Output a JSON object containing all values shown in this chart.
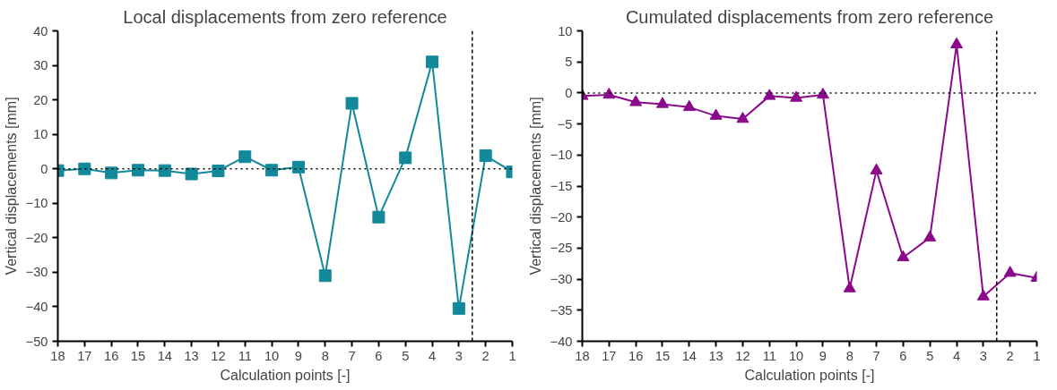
{
  "chart_data": [
    {
      "type": "line",
      "title": "Local displacements from zero reference",
      "xlabel": "Calculation points [-]",
      "ylabel": "Vertical displacements [mm]",
      "x": [
        18,
        17,
        16,
        15,
        14,
        13,
        12,
        11,
        10,
        9,
        8,
        7,
        6,
        5,
        4,
        3,
        2,
        1
      ],
      "series": [
        {
          "color": "#12889b",
          "values": [
            -0.5,
            0,
            -1.2,
            -0.4,
            -0.5,
            -1.5,
            -0.6,
            3.5,
            -0.4,
            0.5,
            -31,
            19,
            -14,
            3.2,
            31,
            -40.5,
            3.8,
            -0.9
          ]
        }
      ],
      "xlim": [
        18,
        1
      ],
      "xticks": [
        18,
        17,
        16,
        15,
        14,
        13,
        12,
        11,
        10,
        9,
        8,
        7,
        6,
        5,
        4,
        3,
        2,
        1
      ],
      "ylim": [
        -50,
        40
      ],
      "yticks": [
        -50,
        -40,
        -30,
        -20,
        -10,
        0,
        10,
        20,
        30,
        40
      ],
      "ref_lines": [
        {
          "axis": "y",
          "value": 0,
          "line_style": "dotted"
        },
        {
          "axis": "x",
          "value": 2.5,
          "line_style": "dashed"
        }
      ],
      "marker": "square",
      "line_style": "solid",
      "grid": false
    },
    {
      "type": "line",
      "title": "Cumulated displacements from zero reference",
      "xlabel": "Calculation points [-]",
      "ylabel": "Vertical displacements [mm]",
      "x": [
        18,
        17,
        16,
        15,
        14,
        13,
        12,
        11,
        10,
        9,
        8,
        7,
        6,
        5,
        4,
        3,
        2,
        1
      ],
      "series": [
        {
          "color": "#8b0a8b",
          "values": [
            -0.5,
            -0.3,
            -1.5,
            -1.8,
            -2.3,
            -3.7,
            -4.2,
            -0.5,
            -0.8,
            -0.3,
            -31.5,
            -12.5,
            -26.5,
            -23.3,
            7.8,
            -32.8,
            -29,
            -29.8
          ]
        }
      ],
      "xlim": [
        18,
        1
      ],
      "xticks": [
        18,
        17,
        16,
        15,
        14,
        13,
        12,
        11,
        10,
        9,
        8,
        7,
        6,
        5,
        4,
        3,
        2,
        1
      ],
      "ylim": [
        -40,
        10
      ],
      "yticks": [
        -40,
        -35,
        -30,
        -25,
        -20,
        -15,
        -10,
        -5,
        0,
        5,
        10
      ],
      "ref_lines": [
        {
          "axis": "y",
          "value": 0,
          "line_style": "dotted"
        },
        {
          "axis": "x",
          "value": 2.5,
          "line_style": "dashed"
        }
      ],
      "marker": "triangle",
      "line_style": "solid",
      "grid": false
    }
  ]
}
